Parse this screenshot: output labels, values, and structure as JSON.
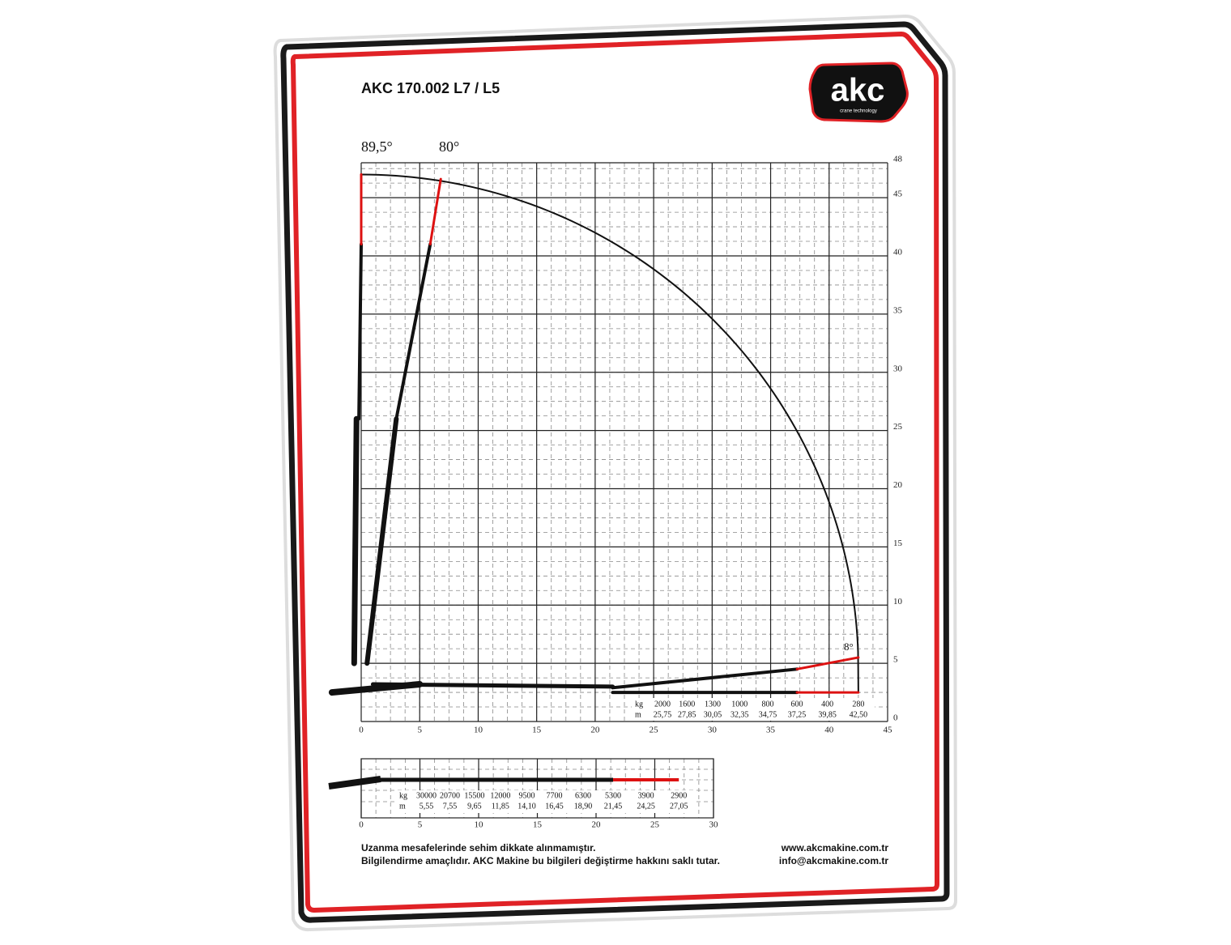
{
  "header": {
    "title": "AKC 170.002 L7 / L5",
    "logo": {
      "name": "akc",
      "tagline": "crane technology"
    }
  },
  "main_chart": {
    "angles": [
      "89,5°",
      "80°",
      "8°"
    ],
    "xlim": [
      0,
      45
    ],
    "ylim": [
      0,
      48
    ],
    "xticks": [
      0,
      5,
      10,
      15,
      20,
      25,
      30,
      35,
      40,
      45
    ],
    "yticks": [
      0,
      5,
      10,
      15,
      20,
      25,
      30,
      35,
      40,
      45,
      48
    ],
    "load_table": {
      "kg_label": "kg",
      "m_label": "m",
      "kg": [
        2000,
        1600,
        1300,
        1000,
        800,
        600,
        400,
        280
      ],
      "m": [
        "25,75",
        "27,85",
        "30,05",
        "32,35",
        "34,75",
        "37,25",
        "39,85",
        "42,50"
      ]
    }
  },
  "short_chart": {
    "xlim": [
      0,
      30
    ],
    "xticks": [
      0,
      5,
      10,
      15,
      20,
      25,
      30
    ],
    "load_table": {
      "kg_label": "kg",
      "m_label": "m",
      "kg": [
        30000,
        20700,
        15500,
        12000,
        9500,
        7700,
        6300,
        5300,
        3900,
        2900
      ],
      "m": [
        "5,55",
        "7,55",
        "9,65",
        "11,85",
        "14,10",
        "16,45",
        "18,90",
        "21,45",
        "24,25",
        "27,05"
      ]
    }
  },
  "footer": {
    "notes": [
      "Uzanma mesafelerinde sehim dikkate alınmamıştır.",
      "Bilgilendirme amaçlıdır. AKC Makine bu bilgileri değiştirme hakkını saklı tutar."
    ],
    "contacts": [
      "www.akcmakine.com.tr",
      "info@akcmakine.com.tr"
    ]
  }
}
